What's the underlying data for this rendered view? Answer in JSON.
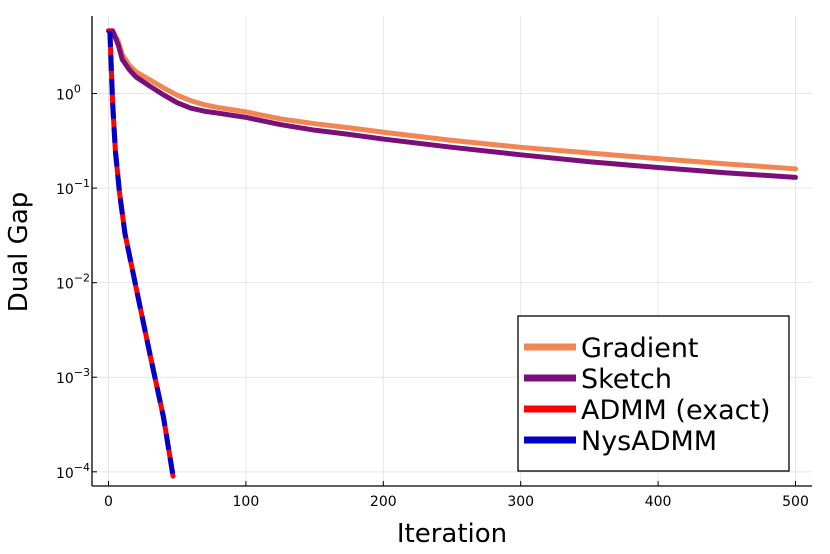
{
  "chart_data": {
    "type": "line",
    "xlabel": "Iteration",
    "ylabel": "Dual Gap",
    "xlim": [
      -12,
      512
    ],
    "ylim_log10": [
      -4.15,
      0.82
    ],
    "y_scale": "log",
    "grid": true,
    "legend_position": "bottom-right",
    "x_ticks": [
      0,
      100,
      200,
      300,
      400,
      500
    ],
    "x_tick_labels": [
      "0",
      "100",
      "200",
      "300",
      "400",
      "500"
    ],
    "y_ticks": [
      {
        "value": 1,
        "base": "10",
        "exp": "0"
      },
      {
        "value": 0.1,
        "base": "10",
        "exp": "−1"
      },
      {
        "value": 0.01,
        "base": "10",
        "exp": "−2"
      },
      {
        "value": 0.001,
        "base": "10",
        "exp": "−3"
      },
      {
        "value": 0.0001,
        "base": "10",
        "exp": "−4"
      }
    ],
    "series": [
      {
        "name": "Gradient",
        "color": "#f28552",
        "dash": "solid",
        "points": [
          [
            0,
            4.6
          ],
          [
            3,
            4.6
          ],
          [
            7,
            3.6
          ],
          [
            10,
            2.6
          ],
          [
            15,
            2.0
          ],
          [
            20,
            1.7
          ],
          [
            30,
            1.4
          ],
          [
            40,
            1.15
          ],
          [
            50,
            0.96
          ],
          [
            60,
            0.84
          ],
          [
            70,
            0.76
          ],
          [
            80,
            0.71
          ],
          [
            100,
            0.64
          ],
          [
            125,
            0.54
          ],
          [
            150,
            0.48
          ],
          [
            175,
            0.435
          ],
          [
            200,
            0.39
          ],
          [
            250,
            0.32
          ],
          [
            300,
            0.27
          ],
          [
            350,
            0.235
          ],
          [
            400,
            0.205
          ],
          [
            450,
            0.18
          ],
          [
            500,
            0.16
          ]
        ]
      },
      {
        "name": "Sketch",
        "color": "#7a0f7a",
        "dash": "solid",
        "points": [
          [
            0,
            4.6
          ],
          [
            3,
            4.6
          ],
          [
            7,
            3.3
          ],
          [
            10,
            2.3
          ],
          [
            15,
            1.8
          ],
          [
            20,
            1.5
          ],
          [
            30,
            1.2
          ],
          [
            40,
            0.97
          ],
          [
            50,
            0.8
          ],
          [
            60,
            0.7
          ],
          [
            70,
            0.65
          ],
          [
            80,
            0.62
          ],
          [
            100,
            0.56
          ],
          [
            125,
            0.47
          ],
          [
            150,
            0.41
          ],
          [
            175,
            0.37
          ],
          [
            200,
            0.33
          ],
          [
            250,
            0.27
          ],
          [
            300,
            0.225
          ],
          [
            350,
            0.19
          ],
          [
            400,
            0.165
          ],
          [
            450,
            0.145
          ],
          [
            500,
            0.13
          ]
        ]
      },
      {
        "name": "ADMM (exact)",
        "color": "#ff0000",
        "dash": "solid",
        "points": [
          [
            1,
            4.6
          ],
          [
            3,
            0.8
          ],
          [
            5,
            0.25
          ],
          [
            8,
            0.09
          ],
          [
            12,
            0.033
          ],
          [
            20,
            0.009
          ],
          [
            30,
            0.0018
          ],
          [
            40,
            0.00038
          ],
          [
            47,
            9e-05
          ]
        ]
      },
      {
        "name": "NysADMM",
        "color": "#0000cc",
        "dash": "dashed",
        "points": [
          [
            1,
            4.6
          ],
          [
            3,
            0.8
          ],
          [
            5,
            0.25
          ],
          [
            8,
            0.09
          ],
          [
            12,
            0.033
          ],
          [
            20,
            0.009
          ],
          [
            30,
            0.0018
          ],
          [
            40,
            0.00038
          ],
          [
            47,
            9e-05
          ]
        ]
      }
    ]
  }
}
